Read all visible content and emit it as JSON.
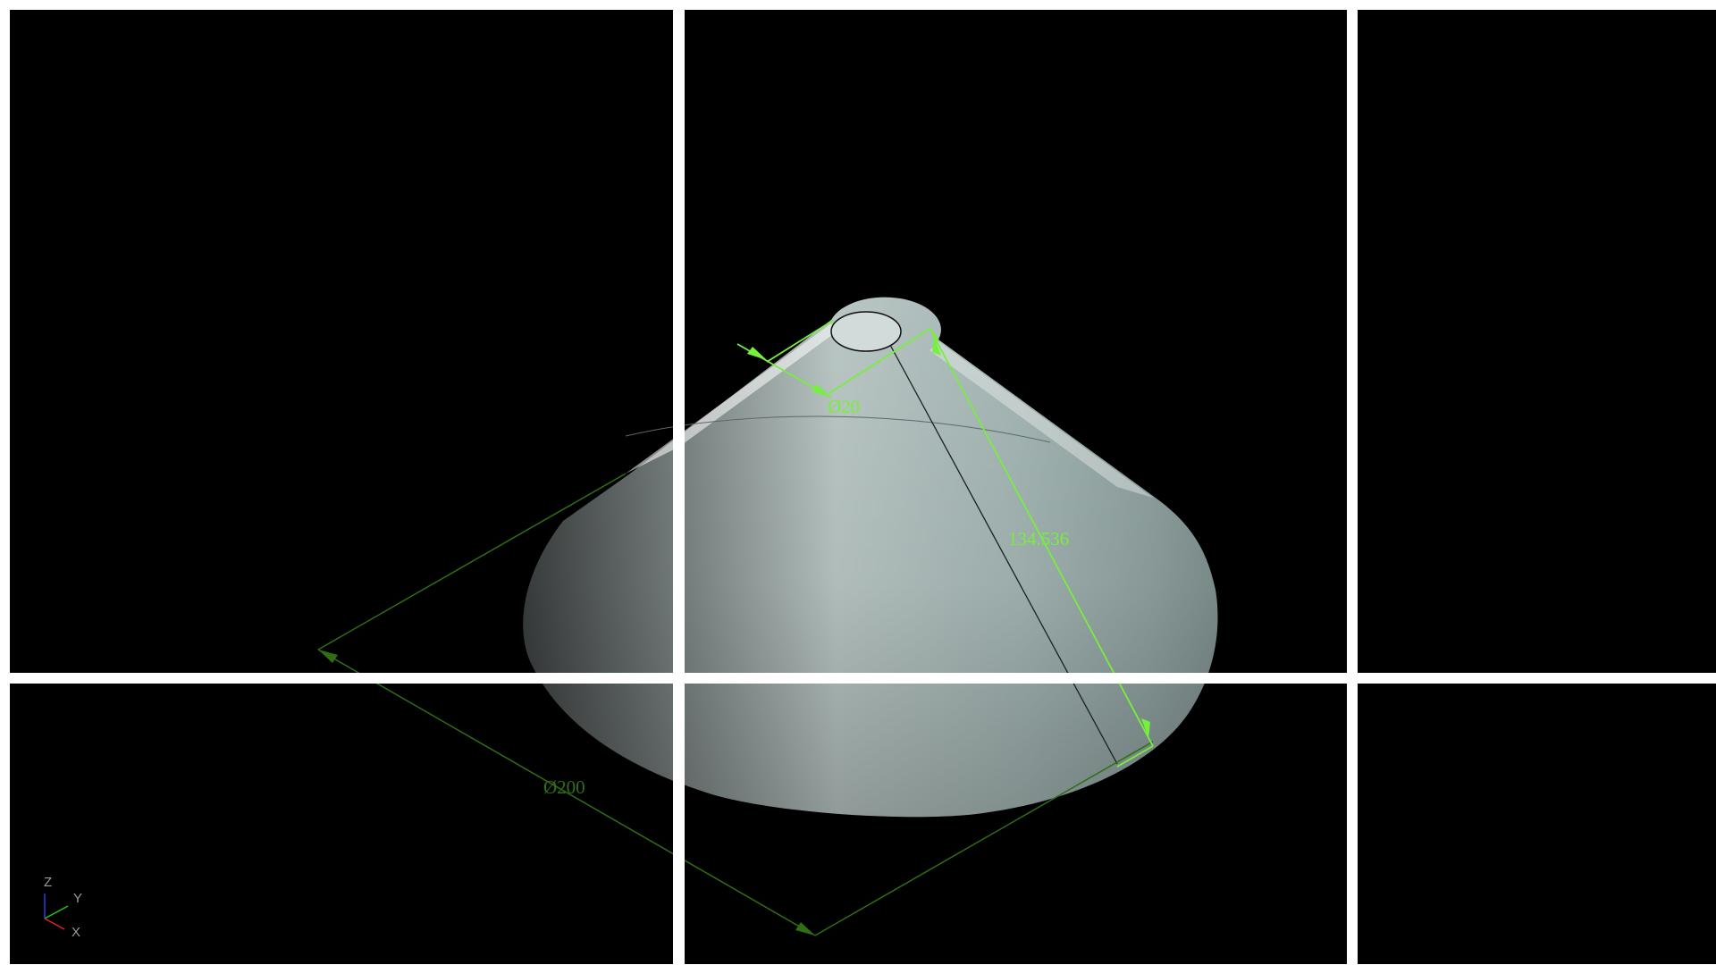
{
  "viewport": {
    "background_color": "#000000",
    "frame_color": "#ffffff"
  },
  "model": {
    "shape": "truncated-cone",
    "surface_color": "#b3c4c2"
  },
  "dimensions": {
    "top_diameter": "Ø20",
    "bottom_diameter": "Ø200",
    "slant_length": "134.536",
    "active_color": "#76f03c",
    "inactive_color": "#2f6e12"
  },
  "axis_triad": {
    "z_label": "Z",
    "y_label": "Y",
    "x_label": "X",
    "x_color": "#e02020",
    "y_color": "#20c020",
    "z_color": "#2040e0"
  }
}
